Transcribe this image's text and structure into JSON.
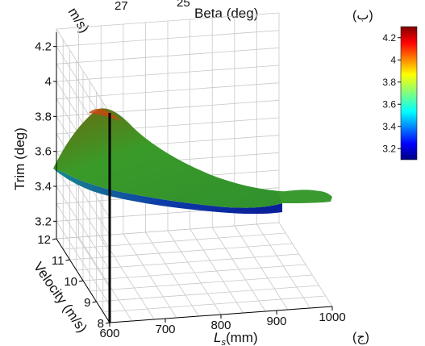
{
  "chart_data": [
    {
      "type": "surface",
      "top_axis_fragments": {
        "velocity_fragment": "m/s)",
        "velocity_tick": "27",
        "beta_tick": "25",
        "beta_label": "Beta (deg)"
      },
      "panel_label": "(ب)"
    },
    {
      "type": "surface",
      "zlabel": "Trim (deg)",
      "ylabel": "Velocity (m/s)",
      "xlabel_base": "L",
      "xlabel_sub": "s",
      "xlabel_unit": "(mm)",
      "x_ticks": [
        "600",
        "700",
        "800",
        "900",
        "1000"
      ],
      "y_ticks": [
        "8",
        "9",
        "10",
        "11",
        "12"
      ],
      "z_ticks": [
        "3.2",
        "3.4",
        "3.6",
        "3.8",
        "4",
        "4.2"
      ],
      "xlim": [
        600,
        1000
      ],
      "ylim": [
        8,
        12
      ],
      "zlim": [
        3.1,
        4.3
      ],
      "grid": true,
      "colormap": "jet",
      "colorbar": {
        "ticks": [
          "4.2",
          "4",
          "3.8",
          "3.6",
          "3.4",
          "3.2"
        ],
        "range": [
          3.1,
          4.3
        ]
      },
      "surface_edge_trim_at_min_velocity": [
        {
          "x": 600,
          "y": 8,
          "z": 3.52
        },
        {
          "x": 650,
          "y": 8,
          "z": 3.4
        },
        {
          "x": 700,
          "y": 8,
          "z": 3.3
        },
        {
          "x": 800,
          "y": 8,
          "z": 3.2
        },
        {
          "x": 850,
          "y": 8,
          "z": 3.15
        }
      ],
      "surface_edge_trim_at_max_velocity": [
        {
          "x": 600,
          "y": 12,
          "z": 4.0
        },
        {
          "x": 700,
          "y": 12,
          "z": 3.7
        },
        {
          "x": 800,
          "y": 12,
          "z": 3.45
        },
        {
          "x": 900,
          "y": 12,
          "z": 3.42
        },
        {
          "x": 1000,
          "y": 12,
          "z": 3.35
        }
      ],
      "panel_label": "(ج)"
    }
  ]
}
